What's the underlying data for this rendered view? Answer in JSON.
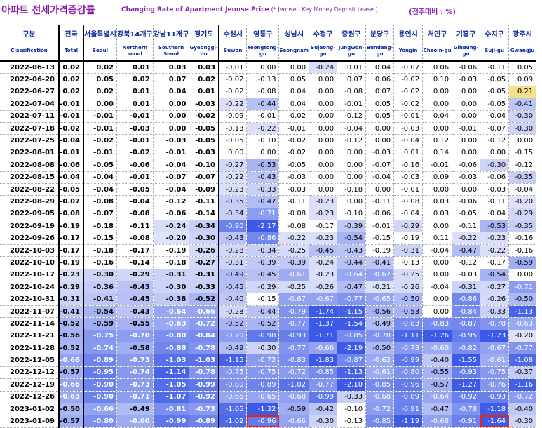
{
  "title": {
    "ko": "아파트 전세가격증감률",
    "en": "Changing Rate of Apartment Jeonse Price",
    "note": "(* Jeonse : Key Money Deposit Lease )",
    "unit": "(전주대비 : %)"
  },
  "colors": {
    "title": "#8b1ea8",
    "header_text": "#0a2a9c",
    "positive": "#f7e08a",
    "highlight_border": "#e3261b"
  },
  "chart_data": {
    "type": "table",
    "columns": [
      {
        "ko": "구분",
        "en": "Classification"
      },
      {
        "ko": "전국",
        "en": "Total"
      },
      {
        "ko": "서울특별시",
        "en": "Seoul"
      },
      {
        "ko": "강북14개구",
        "en": "Northern seoul"
      },
      {
        "ko": "강남11개구",
        "en": "Southern Seoul"
      },
      {
        "ko": "경기도",
        "en": "Gyeonggi-do"
      },
      {
        "ko": "수원시",
        "en": "Suwon"
      },
      {
        "ko": "영통구",
        "en": "Yeongtong-gu"
      },
      {
        "ko": "성남시",
        "en": "Seongnam"
      },
      {
        "ko": "수정구",
        "en": "Sujeong-gu"
      },
      {
        "ko": "중원구",
        "en": "Jungwon-gu"
      },
      {
        "ko": "분당구",
        "en": "Bundang-gu"
      },
      {
        "ko": "용인시",
        "en": "Yongin"
      },
      {
        "ko": "처인구",
        "en": "Cheoin-gu"
      },
      {
        "ko": "기흥구",
        "en": "Giheung-gu"
      },
      {
        "ko": "수지구",
        "en": "Suji-gu"
      },
      {
        "ko": "광주시",
        "en": "Gwangju"
      }
    ],
    "rows": [
      {
        "date": "2022-06-13",
        "values": [
          "0.02",
          "0.02",
          "0.01",
          "0.03",
          "0.03",
          "-0.01",
          "0.00",
          "0.00",
          "-0.24",
          "0.01",
          "0.04",
          "-0.07",
          "0.06",
          "-0.06",
          "-0.11",
          "0.05"
        ]
      },
      {
        "date": "2022-06-20",
        "values": [
          "0.02",
          "0.05",
          "0.02",
          "0.07",
          "0.02",
          "-0.02",
          "-0.13",
          "0.05",
          "0.00",
          "0.07",
          "0.06",
          "-0.02",
          "0.10",
          "-0.03",
          "-0.05",
          "0.09"
        ]
      },
      {
        "date": "2022-06-27",
        "values": [
          "0.02",
          "0.02",
          "0.01",
          "0.04",
          "0.01",
          "-0.02",
          "-0.08",
          "0.04",
          "0.00",
          "-0.08",
          "0.07",
          "-0.02",
          "0.00",
          "0.00",
          "-0.05",
          "0.21"
        ]
      },
      {
        "date": "2022-07-04",
        "values": [
          "-0.01",
          "0.00",
          "0.01",
          "0.00",
          "-0.03",
          "-0.22",
          "-0.44",
          "0.04",
          "0.00",
          "-0.01",
          "0.05",
          "-0.02",
          "0.00",
          "0.00",
          "-0.05",
          "-0.41"
        ]
      },
      {
        "date": "2022-07-11",
        "values": [
          "-0.01",
          "-0.01",
          "-0.01",
          "0.00",
          "-0.02",
          "-0.09",
          "-0.01",
          "0.02",
          "0.00",
          "-0.12",
          "0.05",
          "-0.01",
          "0.04",
          "0.00",
          "-0.04",
          "-0.30"
        ]
      },
      {
        "date": "2022-07-18",
        "values": [
          "-0.02",
          "-0.01",
          "-0.03",
          "0.00",
          "-0.05",
          "-0.13",
          "-0.22",
          "-0.01",
          "0.00",
          "-0.04",
          "0.00",
          "-0.03",
          "0.00",
          "-0.01",
          "-0.07",
          "-0.30"
        ]
      },
      {
        "date": "2022-07-25",
        "values": [
          "-0.04",
          "-0.02",
          "-0.01",
          "-0.03",
          "-0.05",
          "-0.05",
          "-0.10",
          "-0.02",
          "0.00",
          "-0.12",
          "0.00",
          "-0.04",
          "0.12",
          "0.00",
          "-0.12",
          "0.00"
        ]
      },
      {
        "date": "2022-08-01",
        "values": [
          "-0.01",
          "-0.01",
          "-0.02",
          "-0.01",
          "-0.03",
          "0.00",
          "0.00",
          "-0.02",
          "0.00",
          "0.00",
          "-0.03",
          "0.01",
          "0.14",
          "0.00",
          "0.00",
          "-0.15"
        ]
      },
      {
        "date": "2022-08-08",
        "values": [
          "-0.06",
          "-0.05",
          "-0.06",
          "-0.04",
          "-0.10",
          "-0.27",
          "-0.53",
          "-0.05",
          "0.00",
          "0.00",
          "-0.07",
          "-0.16",
          "-0.01",
          "-0.06",
          "-0.30",
          "-0.12"
        ]
      },
      {
        "date": "2022-08-15",
        "values": [
          "-0.04",
          "-0.04",
          "-0.01",
          "-0.07",
          "-0.07",
          "-0.22",
          "-0.43",
          "-0.03",
          "0.00",
          "0.00",
          "-0.04",
          "-0.03",
          "0.09",
          "-0.03",
          "-0.06",
          "-0.35"
        ]
      },
      {
        "date": "2022-08-22",
        "values": [
          "-0.05",
          "-0.04",
          "-0.05",
          "-0.04",
          "-0.09",
          "-0.23",
          "-0.33",
          "-0.03",
          "0.00",
          "-0.18",
          "0.00",
          "-0.01",
          "0.00",
          "0.00",
          "-0.03",
          "-0.04"
        ]
      },
      {
        "date": "2022-08-29",
        "values": [
          "-0.07",
          "-0.08",
          "-0.04",
          "-0.12",
          "-0.11",
          "-0.35",
          "-0.47",
          "-0.11",
          "-0.23",
          "0.00",
          "-0.11",
          "-0.08",
          "0.03",
          "-0.06",
          "-0.11",
          "-0.20"
        ]
      },
      {
        "date": "2022-09-05",
        "values": [
          "-0.08",
          "-0.07",
          "-0.08",
          "-0.06",
          "-0.14",
          "-0.34",
          "-0.71",
          "-0.08",
          "-0.23",
          "-0.10",
          "-0.06",
          "-0.04",
          "0.03",
          "-0.05",
          "-0.04",
          "-0.29"
        ]
      },
      {
        "date": "2022-09-19",
        "values": [
          "-0.19",
          "-0.18",
          "-0.11",
          "-0.24",
          "-0.34",
          "-0.90",
          "-2.17",
          "-0.08",
          "-0.17",
          "-0.39",
          "-0.01",
          "-0.29",
          "0.00",
          "-0.11",
          "-0.53",
          "-0.35"
        ]
      },
      {
        "date": "2022-09-26",
        "values": [
          "-0.17",
          "-0.15",
          "-0.08",
          "-0.20",
          "-0.30",
          "-0.43",
          "-0.86",
          "-0.22",
          "-0.23",
          "-0.54",
          "-0.15",
          "-0.19",
          "0.11",
          "-0.22",
          "-0.23",
          "-0.16"
        ]
      },
      {
        "date": "2022-10-03",
        "values": [
          "-0.17",
          "-0.18",
          "-0.17",
          "-0.19",
          "-0.26",
          "-0.28",
          "-0.34",
          "-0.25",
          "-0.45",
          "-0.43",
          "-0.19",
          "-0.31",
          "-0.04",
          "-0.47",
          "-0.22",
          "-0.16"
        ]
      },
      {
        "date": "2022-10-10",
        "values": [
          "-0.19",
          "-0.16",
          "-0.14",
          "-0.18",
          "-0.27",
          "-0.31",
          "-0.39",
          "-0.39",
          "-0.24",
          "-0.44",
          "-0.41",
          "-0.13",
          "0.00",
          "-0.12",
          "-0.17",
          "-0.59"
        ]
      },
      {
        "date": "2022-10-17",
        "values": [
          "-0.23",
          "-0.30",
          "-0.29",
          "-0.31",
          "-0.31",
          "-0.49",
          "-0.45",
          "-0.61",
          "-0.23",
          "-0.64",
          "-0.67",
          "-0.25",
          "0.00",
          "-0.03",
          "-0.54",
          "0.00"
        ]
      },
      {
        "date": "2022-10-24",
        "values": [
          "-0.29",
          "-0.36",
          "-0.43",
          "-0.30",
          "-0.33",
          "-0.45",
          "-0.29",
          "-0.25",
          "-0.26",
          "-0.47",
          "-0.21",
          "-0.26",
          "-0.04",
          "-0.31",
          "-0.27",
          "-0.71"
        ]
      },
      {
        "date": "2022-10-31",
        "values": [
          "-0.31",
          "-0.41",
          "-0.45",
          "-0.38",
          "-0.52",
          "-0.40",
          "-0.15",
          "-0.67",
          "-0.67",
          "-0.77",
          "-0.65",
          "-0.50",
          "0.00",
          "-0.86",
          "-0.26",
          "-0.50"
        ]
      },
      {
        "date": "2022-11-07",
        "values": [
          "-0.41",
          "-0.54",
          "-0.43",
          "-0.64",
          "-0.66",
          "-0.28",
          "-0.44",
          "-0.79",
          "-1.74",
          "-1.15",
          "-0.56",
          "-0.53",
          "0.00",
          "-0.84",
          "-0.33",
          "-1.13"
        ]
      },
      {
        "date": "2022-11-14",
        "values": [
          "-0.52",
          "-0.59",
          "-0.55",
          "-0.63",
          "-0.72",
          "-0.52",
          "-0.52",
          "-0.77",
          "-1.37",
          "-1.54",
          "-0.49",
          "-0.83",
          "-0.83",
          "-0.87",
          "-0.78",
          "-0.63"
        ]
      },
      {
        "date": "2022-11-21",
        "values": [
          "-0.56",
          "-0.75",
          "-0.70",
          "-0.80",
          "-0.84",
          "-0.70",
          "-0.98",
          "-0.93",
          "-1.71",
          "-0.85",
          "-0.78",
          "-1.11",
          "-1.26",
          "-0.95",
          "-1.23",
          "-0.20"
        ]
      },
      {
        "date": "2022-11-28",
        "values": [
          "-0.52",
          "-0.74",
          "-0.58",
          "-0.88",
          "-0.78",
          "-0.49",
          "-0.30",
          "-0.77",
          "-0.66",
          "-2.19",
          "-0.50",
          "-0.73",
          "-0.60",
          "-0.82",
          "-0.67",
          "-0.77"
        ]
      },
      {
        "date": "2022-12-05",
        "values": [
          "-0.66",
          "-0.89",
          "-0.73",
          "-1.03",
          "-1.03",
          "-1.15",
          "-0.72",
          "-0.83",
          "-1.83",
          "-0.87",
          "-0.62",
          "-0.99",
          "-0.40",
          "-1.55",
          "-0.61",
          "-1.08"
        ]
      },
      {
        "date": "2022-12-12",
        "values": [
          "-0.57",
          "-0.95",
          "-0.74",
          "-1.14",
          "-0.78",
          "-0.75",
          "-0.75",
          "-0.72",
          "-0.85",
          "-1.13",
          "-0.61",
          "-0.80",
          "-0.55",
          "-0.93",
          "-0.75",
          "-0.37"
        ]
      },
      {
        "date": "2022-12-19",
        "values": [
          "-0.66",
          "-0.90",
          "-0.73",
          "-1.05",
          "-0.99",
          "-0.80",
          "-0.89",
          "-1.02",
          "-0.77",
          "-2.10",
          "-0.85",
          "-0.96",
          "-0.57",
          "-1.27",
          "-0.76",
          "-1.16"
        ]
      },
      {
        "date": "2022-12-26",
        "values": [
          "-0.63",
          "-0.90",
          "-0.71",
          "-1.07",
          "-0.92",
          "-0.65",
          "-0.65",
          "-0.68",
          "-0.99",
          "-0.33",
          "-0.68",
          "-0.89",
          "-0.64",
          "-0.92",
          "-0.93",
          "-0.72"
        ]
      },
      {
        "date": "2023-01-02",
        "values": [
          "-0.50",
          "-0.66",
          "-0.49",
          "-0.81",
          "-0.73",
          "-1.05",
          "-1.32",
          "-0.59",
          "-0.42",
          "-0.10",
          "-0.72",
          "-0.91",
          "-0.47",
          "-0.78",
          "-1.18",
          "-0.40"
        ]
      },
      {
        "date": "2023-01-09",
        "values": [
          "-0.57",
          "-0.80",
          "-0.60",
          "-0.99",
          "-0.89",
          "-1.09",
          "-0.96",
          "-0.66",
          "-0.30",
          "-0.13",
          "-0.85",
          "-1.19",
          "-0.68",
          "-0.91",
          "-1.64",
          "-0.30"
        ]
      }
    ],
    "highlighted": [
      {
        "date": "2023-01-09",
        "column": "영통구"
      },
      {
        "date": "2023-01-09",
        "column": "수지구"
      }
    ]
  }
}
